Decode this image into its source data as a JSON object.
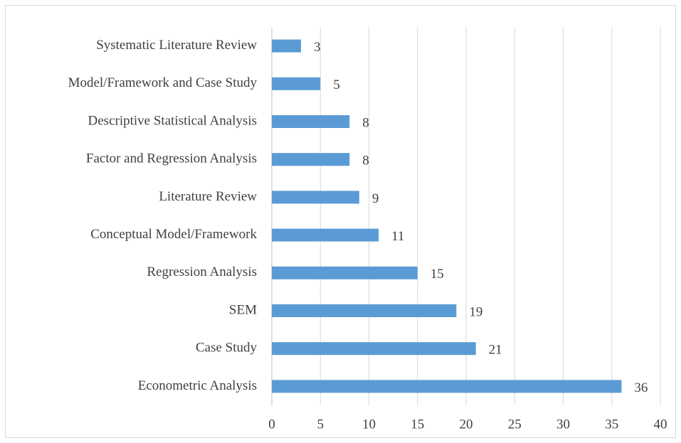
{
  "chart_data": {
    "type": "bar",
    "orientation": "horizontal",
    "categories": [
      "Systematic Literature Review",
      "Model/Framework and Case Study",
      "Descriptive Statistical Analysis",
      "Factor and Regression Analysis",
      "Literature Review",
      "Conceptual Model/Framework",
      "Regression Analysis",
      "SEM",
      "Case Study",
      "Econometric Analysis"
    ],
    "values": [
      3,
      5,
      8,
      8,
      9,
      11,
      15,
      19,
      21,
      36
    ],
    "color": "#5b9bd5",
    "xlim": [
      0,
      40
    ],
    "xticks": [
      0,
      5,
      10,
      15,
      20,
      25,
      30,
      35,
      40
    ],
    "grid": true
  }
}
